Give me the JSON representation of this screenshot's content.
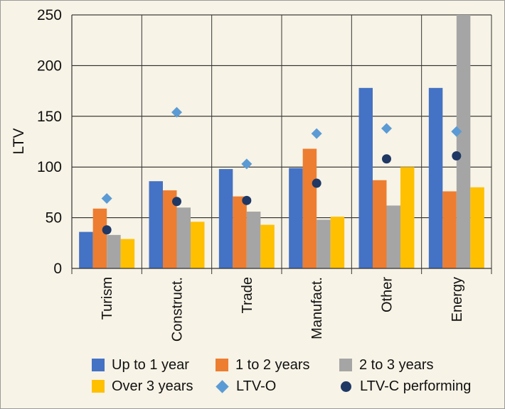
{
  "chart_data": {
    "type": "bar",
    "ylabel": "LTV",
    "ylim": [
      0,
      250
    ],
    "yticks": [
      0,
      50,
      100,
      150,
      200,
      250
    ],
    "grid": true,
    "categories": [
      "Turism",
      "Construct.",
      "Trade",
      "Manufact.",
      "Other",
      "Energy"
    ],
    "series": [
      {
        "name": "Up to 1 year",
        "kind": "bar",
        "color": "#4472c4",
        "values": [
          36,
          86,
          98,
          99,
          178,
          178
        ]
      },
      {
        "name": "1 to 2 years",
        "kind": "bar",
        "color": "#ed7d31",
        "values": [
          59,
          77,
          71,
          118,
          87,
          76
        ]
      },
      {
        "name": "2 to 3 years",
        "kind": "bar",
        "color": "#a5a5a5",
        "values": [
          33,
          60,
          56,
          48,
          62,
          250
        ]
      },
      {
        "name": "Over 3 years",
        "kind": "bar",
        "color": "#ffc000",
        "values": [
          29,
          46,
          43,
          51,
          100,
          80
        ]
      },
      {
        "name": "LTV-O",
        "kind": "diamond",
        "color": "#5b9bd5",
        "values": [
          69,
          154,
          103,
          133,
          138,
          135
        ]
      },
      {
        "name": "LTV-C performing",
        "kind": "circle",
        "color": "#1f3864",
        "values": [
          38,
          66,
          67,
          84,
          108,
          111
        ]
      }
    ],
    "legend_position": "bottom"
  }
}
